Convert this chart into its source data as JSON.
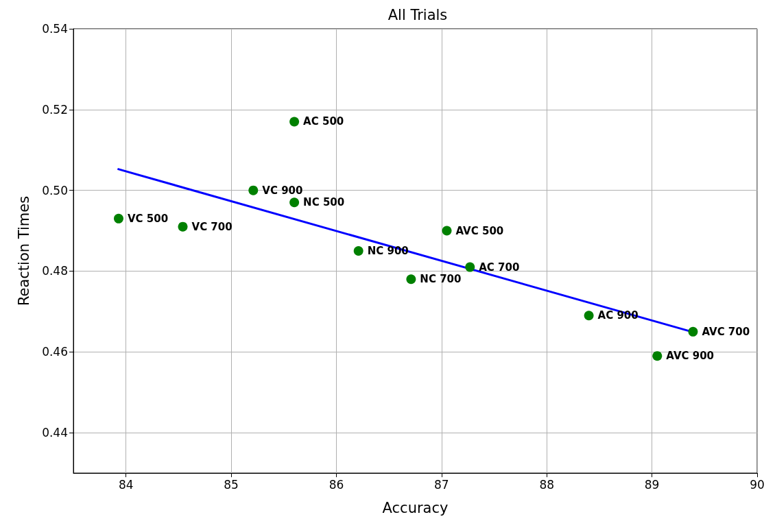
{
  "chart_data": {
    "type": "scatter",
    "title": "All Trials",
    "xlabel": "Accuracy",
    "ylabel": "Reaction Times",
    "xlim": [
      83.5,
      90
    ],
    "xticks": [
      84,
      85,
      86,
      87,
      88,
      89,
      90
    ],
    "ylim": [
      0.43,
      0.54
    ],
    "yticks": [
      0.44,
      0.46,
      0.48,
      {
        "value": 0.5,
        "label": "0.50"
      },
      0.52,
      0.54
    ],
    "grid": true,
    "series": [
      {
        "marker": "circle",
        "color": "#008000",
        "x": [
          83.93,
          84.54,
          85.21,
          85.6,
          85.6,
          86.21,
          86.71,
          87.05,
          87.27,
          88.4,
          89.39,
          89.05
        ],
        "values": [
          0.493,
          0.491,
          0.5,
          0.517,
          0.497,
          0.485,
          0.478,
          0.49,
          0.481,
          0.469,
          0.465,
          0.459
        ],
        "value_labels": [
          "VC 500",
          "VC 700",
          "VC 900",
          "AC 500",
          "NC 500",
          "NC 900",
          "NC 700",
          "AVC 500",
          "AC 700",
          "AC 900",
          "AVC 700",
          "AVC 900"
        ]
      },
      {
        "type": "line",
        "marker": "none",
        "color": "#0000ff",
        "x": [
          83.92,
          89.39
        ],
        "values": [
          0.5053,
          0.4649
        ]
      }
    ]
  }
}
